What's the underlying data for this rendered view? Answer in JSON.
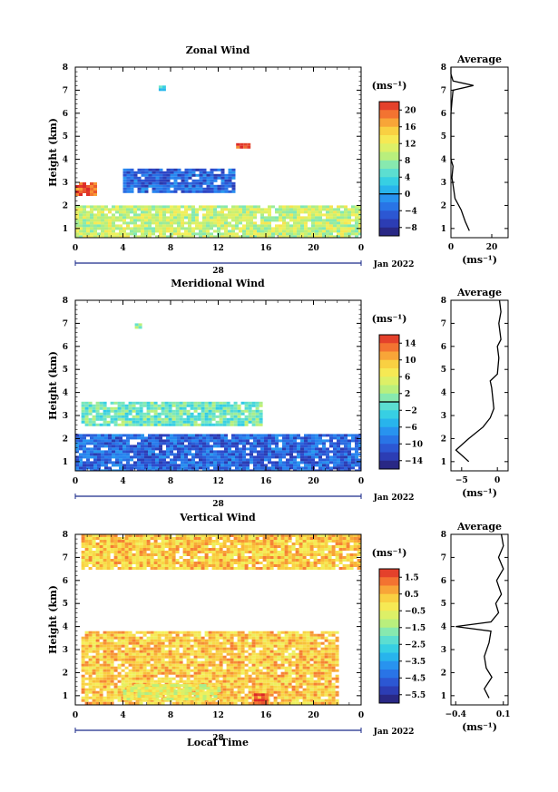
{
  "chart_data": [
    {
      "type": "heatmap",
      "title": "Zonal Wind",
      "ylabel": "Height (km)",
      "xlim": [
        0,
        24
      ],
      "ylim": [
        0.6,
        8
      ],
      "xticks": [
        "0",
        "4",
        "8",
        "12",
        "16",
        "20",
        "0"
      ],
      "yticks": [
        "1",
        "2",
        "3",
        "4",
        "5",
        "6",
        "7",
        "8"
      ],
      "day_label": "28",
      "month_label": "Jan 2022",
      "colorbar": {
        "unit": "(ms⁻¹)",
        "min": -10,
        "max": 22,
        "ticks": [
          20,
          16,
          12,
          8,
          4,
          0,
          -4,
          -8
        ],
        "tick_labels": [
          "20",
          "16",
          "12",
          "8",
          "4",
          "0",
          "−4",
          "−8"
        ],
        "zero_marker": 0
      },
      "regions": [
        {
          "x": [
            0,
            24
          ],
          "y": [
            0.6,
            2.0
          ],
          "value": 10
        },
        {
          "x": [
            4,
            13.3
          ],
          "y": [
            2.6,
            3.6
          ],
          "value": -4
        },
        {
          "x": [
            0,
            1.8
          ],
          "y": [
            2.5,
            3.0
          ],
          "value": 20
        },
        {
          "x": [
            13.5,
            14.5
          ],
          "y": [
            4.5,
            4.7
          ],
          "value": 21
        },
        {
          "x": [
            7,
            7.5
          ],
          "y": [
            7.0,
            7.2
          ],
          "value": 3
        }
      ],
      "average_profile": {
        "title": "Average",
        "xlabel": "(ms⁻¹)",
        "xticks": [
          "0",
          "20"
        ],
        "xlim": [
          0,
          28
        ],
        "points": [
          [
            9,
            0.9
          ],
          [
            7,
            1.3
          ],
          [
            5,
            1.8
          ],
          [
            2,
            2.3
          ],
          [
            1,
            2.9
          ],
          [
            0.5,
            3.2
          ],
          [
            1,
            3.7
          ],
          [
            0,
            4
          ],
          [
            0,
            5
          ],
          [
            0,
            6
          ],
          [
            0.5,
            6.5
          ],
          [
            1,
            7
          ],
          [
            11,
            7.2
          ],
          [
            1,
            7.4
          ],
          [
            0,
            7.7
          ],
          [
            0,
            8
          ]
        ]
      }
    },
    {
      "type": "heatmap",
      "title": "Meridional Wind",
      "ylabel": "Height (km)",
      "xlim": [
        0,
        24
      ],
      "ylim": [
        0.6,
        8
      ],
      "xticks": [
        "0",
        "4",
        "8",
        "12",
        "16",
        "20",
        "0"
      ],
      "yticks": [
        "1",
        "2",
        "3",
        "4",
        "5",
        "6",
        "7",
        "8"
      ],
      "day_label": "28",
      "month_label": "Jan 2022",
      "colorbar": {
        "unit": "(ms⁻¹)",
        "min": -16,
        "max": 16,
        "ticks": [
          14,
          10,
          6,
          2,
          -2,
          -6,
          -10,
          -14
        ],
        "tick_labels": [
          "14",
          "10",
          "6",
          "2",
          "−2",
          "−6",
          "−10",
          "−14"
        ],
        "zero_marker": 0
      },
      "regions": [
        {
          "x": [
            0,
            24
          ],
          "y": [
            0.6,
            2.2
          ],
          "value": -10
        },
        {
          "x": [
            0.5,
            15.5
          ],
          "y": [
            2.6,
            3.6
          ],
          "value": 0
        },
        {
          "x": [
            5,
            5.6
          ],
          "y": [
            6.8,
            7.0
          ],
          "value": 1
        }
      ],
      "average_profile": {
        "title": "Average",
        "xlabel": "(ms⁻¹)",
        "xticks": [
          "−5",
          "0"
        ],
        "xlim": [
          -6.5,
          1.5
        ],
        "points": [
          [
            -4,
            1.0
          ],
          [
            -5.8,
            1.5
          ],
          [
            -4,
            2.0
          ],
          [
            -2,
            2.5
          ],
          [
            -1,
            2.9
          ],
          [
            -0.5,
            3.3
          ],
          [
            -0.8,
            4.2
          ],
          [
            -1,
            4.5
          ],
          [
            0,
            4.8
          ],
          [
            0.2,
            5.5
          ],
          [
            0,
            6
          ],
          [
            0.5,
            6.3
          ],
          [
            0.2,
            7
          ],
          [
            0.5,
            7.5
          ],
          [
            0.3,
            8
          ]
        ]
      }
    },
    {
      "type": "heatmap",
      "title": "Vertical Wind",
      "ylabel": "Height (km)",
      "xlabel": "Local Time",
      "xlim": [
        0,
        24
      ],
      "ylim": [
        0.6,
        8
      ],
      "xticks": [
        "0",
        "4",
        "8",
        "12",
        "16",
        "20",
        "0"
      ],
      "yticks": [
        "1",
        "2",
        "3",
        "4",
        "5",
        "6",
        "7",
        "8"
      ],
      "day_label": "28",
      "month_label": "Jan 2022",
      "colorbar": {
        "unit": "(ms⁻¹)",
        "min": -6,
        "max": 2,
        "ticks": [
          1.5,
          0.5,
          -0.5,
          -1.5,
          -2.5,
          -3.5,
          -4.5,
          -5.5
        ],
        "tick_labels": [
          "1.5",
          "0.5",
          "−0.5",
          "−1.5",
          "−2.5",
          "−3.5",
          "−4.5",
          "−5.5"
        ]
      },
      "regions": [
        {
          "x": [
            0.5,
            22
          ],
          "y": [
            0.6,
            3.8
          ],
          "value": 0.3
        },
        {
          "x": [
            4,
            12
          ],
          "y": [
            0.8,
            1.5
          ],
          "value": -0.6
        },
        {
          "x": [
            15,
            16
          ],
          "y": [
            0.6,
            1.1
          ],
          "value": 1.6
        },
        {
          "x": [
            0.5,
            24
          ],
          "y": [
            6.5,
            8.0
          ],
          "value": 0.3
        }
      ],
      "average_profile": {
        "title": "Average",
        "xlabel": "(ms⁻¹)",
        "xticks": [
          "−0.4",
          "0.1"
        ],
        "xlim": [
          -0.45,
          0.15
        ],
        "points": [
          [
            -0.05,
            0.9
          ],
          [
            -0.1,
            1.3
          ],
          [
            -0.02,
            1.8
          ],
          [
            -0.08,
            2.2
          ],
          [
            -0.1,
            2.7
          ],
          [
            -0.05,
            3.3
          ],
          [
            -0.03,
            3.8
          ],
          [
            -0.4,
            4.0
          ],
          [
            -0.03,
            4.2
          ],
          [
            0.05,
            4.6
          ],
          [
            0.02,
            5.0
          ],
          [
            0.08,
            5.4
          ],
          [
            0.03,
            6.0
          ],
          [
            0.1,
            6.5
          ],
          [
            0.05,
            7
          ],
          [
            0.1,
            7.5
          ],
          [
            0.08,
            8
          ]
        ]
      }
    }
  ]
}
